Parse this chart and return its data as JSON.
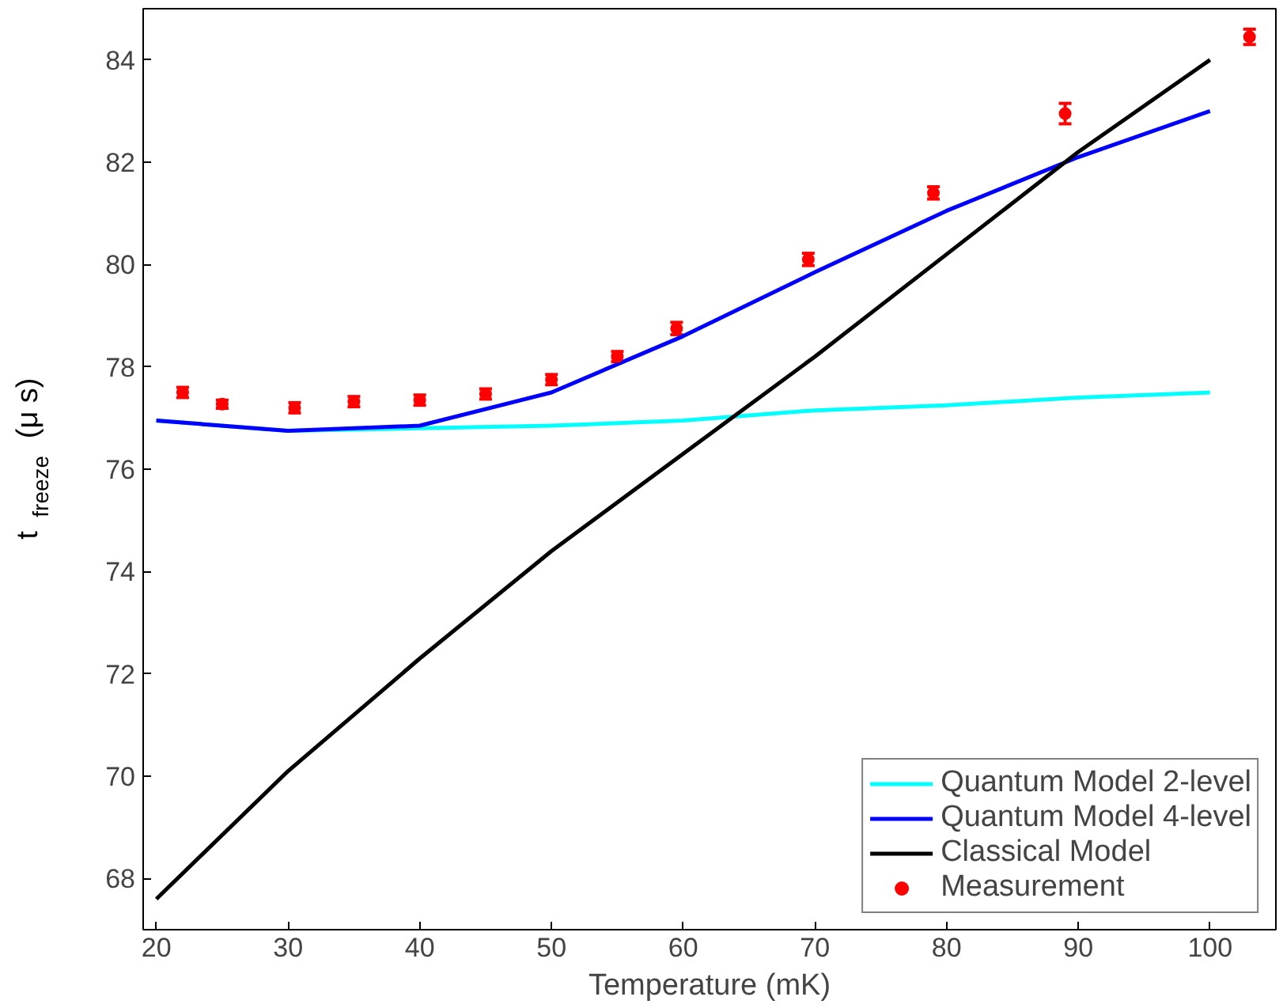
{
  "chart_data": {
    "type": "line",
    "xlabel": "Temperature (mK)",
    "ylabel": "t$_{freeze}$ (μ s)",
    "xlim": [
      19,
      105
    ],
    "ylim": [
      67,
      85
    ],
    "xticks": [
      20,
      30,
      40,
      50,
      60,
      70,
      80,
      90,
      100
    ],
    "yticks": [
      68,
      70,
      72,
      74,
      76,
      78,
      80,
      82,
      84
    ],
    "grid": false,
    "legend": "bottom right",
    "series": [
      {
        "name": "Quantum Model 2-level",
        "color": "#00ffff",
        "x": [
          20,
          30,
          40,
          50,
          60,
          70,
          80,
          90,
          100
        ],
        "values": [
          76.95,
          76.75,
          76.8,
          76.85,
          76.95,
          77.15,
          77.25,
          77.4,
          77.5
        ]
      },
      {
        "name": "Quantum Model 4-level",
        "color": "#0000ff",
        "x": [
          20,
          30,
          40,
          50,
          60,
          70,
          80,
          90,
          100
        ],
        "values": [
          76.95,
          76.75,
          76.85,
          77.5,
          78.6,
          79.85,
          81.05,
          82.1,
          83.0
        ]
      },
      {
        "name": "Classical Model",
        "color": "#000000",
        "x": [
          20,
          30,
          40,
          50,
          60,
          70,
          80,
          90,
          100
        ],
        "values": [
          67.6,
          70.1,
          72.3,
          74.4,
          76.3,
          78.2,
          80.2,
          82.2,
          84.0
        ]
      },
      {
        "name": "Measurement",
        "type": "scatter",
        "marker": "circle",
        "color": "#ff0000",
        "x": [
          22,
          25,
          30.5,
          35,
          40,
          45,
          50,
          55,
          59.5,
          69.5,
          79,
          89,
          103
        ],
        "values": [
          77.5,
          77.27,
          77.2,
          77.32,
          77.35,
          77.47,
          77.75,
          78.2,
          78.75,
          80.1,
          81.4,
          82.95,
          84.45
        ],
        "errors": [
          0.1,
          0.08,
          0.1,
          0.1,
          0.1,
          0.1,
          0.1,
          0.1,
          0.12,
          0.12,
          0.12,
          0.2,
          0.15
        ]
      }
    ]
  }
}
